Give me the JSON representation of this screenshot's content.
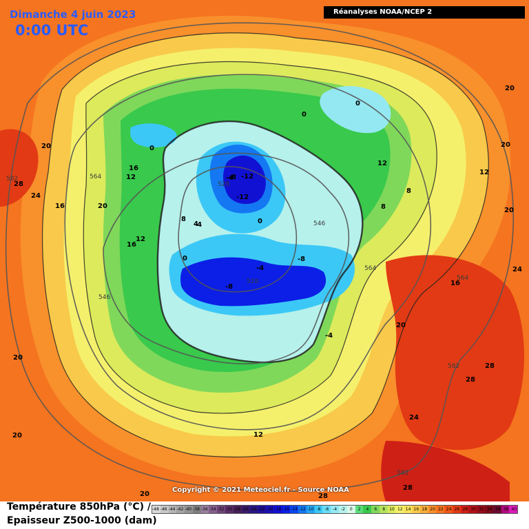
{
  "header": {
    "date": "Dimanche 4 juin 2023",
    "time": "0:00 UTC",
    "source": "Réanalyses NOAA/NCEP 2"
  },
  "copyright": "Copyright © 2021 Meteociel.fr - Source NOAA",
  "legend": {
    "title_temperature": "Température 850hPa (°C) /",
    "title_thickness": "Epaisseur Z500-1000 (dam)",
    "scale_labels": [
      "-48",
      "-46",
      "-44",
      "-42",
      "-40",
      "-38",
      "-36",
      "-34",
      "-32",
      "-30",
      "-28",
      "-26",
      "-24",
      "-22",
      "-20",
      "-18",
      "-16",
      "-14",
      "-12",
      "-10",
      "-8",
      "-6",
      "-4",
      "-2",
      "0",
      "2",
      "4",
      "6",
      "8",
      "10",
      "12",
      "14",
      "16",
      "18",
      "20",
      "22",
      "24",
      "26",
      "28",
      "30",
      "32",
      "34",
      "36",
      "38",
      "40"
    ],
    "scale_colors": [
      "#d9d9d9",
      "#c8c8c8",
      "#b5b5b5",
      "#a3a3a3",
      "#929292",
      "#808080",
      "#9a7fa0",
      "#84608c",
      "#6e4478",
      "#5a2d66",
      "#472058",
      "#3a1a6a",
      "#2a1680",
      "#200f99",
      "#1a10b8",
      "#1111d4",
      "#0b1fe6",
      "#0a46f0",
      "#1478f2",
      "#24a6f4",
      "#3cc8f6",
      "#68dcf7",
      "#94e8f2",
      "#b6f1ec",
      "#dcf8ea",
      "#5adc7a",
      "#39c94c",
      "#7fd85a",
      "#b5e35c",
      "#dcea5c",
      "#f5f06c",
      "#f7e25a",
      "#f8c94a",
      "#f8ad3a",
      "#f8902c",
      "#f5741f",
      "#ee5717",
      "#e23a14",
      "#cf2016",
      "#b41218",
      "#960c1a",
      "#7c0a1a",
      "#6a0a2e",
      "#b10a7e",
      "#d81bb8"
    ]
  },
  "isotherm_labels": [
    {
      "text": "-12"
    },
    {
      "text": "-12"
    },
    {
      "text": "-8"
    },
    {
      "text": "-8"
    },
    {
      "text": "-8"
    },
    {
      "text": "-4"
    },
    {
      "text": "-4"
    },
    {
      "text": "-4"
    },
    {
      "text": "-4"
    },
    {
      "text": "0"
    },
    {
      "text": "0"
    },
    {
      "text": "0"
    },
    {
      "text": "0"
    },
    {
      "text": "0"
    },
    {
      "text": "4"
    },
    {
      "text": "8"
    },
    {
      "text": "8"
    },
    {
      "text": "8"
    },
    {
      "text": "12"
    },
    {
      "text": "12"
    },
    {
      "text": "12"
    },
    {
      "text": "12"
    },
    {
      "text": "12"
    },
    {
      "text": "16"
    },
    {
      "text": "16"
    },
    {
      "text": "16"
    },
    {
      "text": "16"
    },
    {
      "text": "20"
    },
    {
      "text": "20"
    },
    {
      "text": "20"
    },
    {
      "text": "20"
    },
    {
      "text": "20"
    },
    {
      "text": "20"
    },
    {
      "text": "20"
    },
    {
      "text": "20"
    },
    {
      "text": "20"
    },
    {
      "text": "24"
    },
    {
      "text": "24"
    },
    {
      "text": "24"
    },
    {
      "text": "28"
    },
    {
      "text": "28"
    },
    {
      "text": "28"
    },
    {
      "text": "28"
    },
    {
      "text": "28"
    }
  ],
  "thickness_labels": [
    {
      "text": "528"
    },
    {
      "text": "528"
    },
    {
      "text": "546"
    },
    {
      "text": "546"
    },
    {
      "text": "564"
    },
    {
      "text": "564"
    },
    {
      "text": "564"
    },
    {
      "text": "582"
    },
    {
      "text": "582"
    },
    {
      "text": "582"
    }
  ]
}
